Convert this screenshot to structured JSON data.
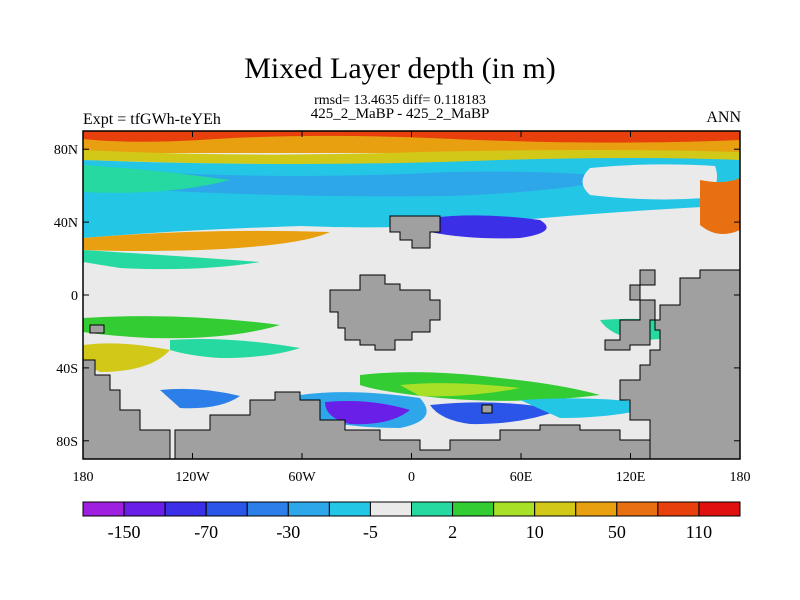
{
  "title": "Mixed Layer depth (in m)",
  "stats_line": "rmsd= 13.4635 diff= 0.118183",
  "cases_line": "425_2_MaBP - 425_2_MaBP",
  "left_label": "Expt = tfGWh-teYEh",
  "right_label": "ANN",
  "map": {
    "lat_ticks": [
      "80N",
      "40N",
      "0",
      "40S",
      "80S"
    ],
    "lat_values": [
      80,
      40,
      0,
      -40,
      -80
    ],
    "lon_ticks": [
      "180",
      "120W",
      "60W",
      "0",
      "60E",
      "120E",
      "180"
    ],
    "lon_values": [
      -180,
      -120,
      -60,
      0,
      60,
      120,
      180
    ],
    "land_color": "#a0a0a0"
  },
  "colorbar": {
    "colors": [
      "#9f1fe0",
      "#6a1fe8",
      "#3c2fe8",
      "#2a55e8",
      "#2c7fe8",
      "#2ea6ea",
      "#24c6e6",
      "#eaeaea",
      "#26d9a0",
      "#33cc33",
      "#a8e028",
      "#d2c818",
      "#e8a010",
      "#e87010",
      "#e8400c",
      "#e01010"
    ],
    "labels": [
      "-150",
      "-70",
      "-30",
      "-5",
      "2",
      "10",
      "50",
      "110"
    ]
  }
}
